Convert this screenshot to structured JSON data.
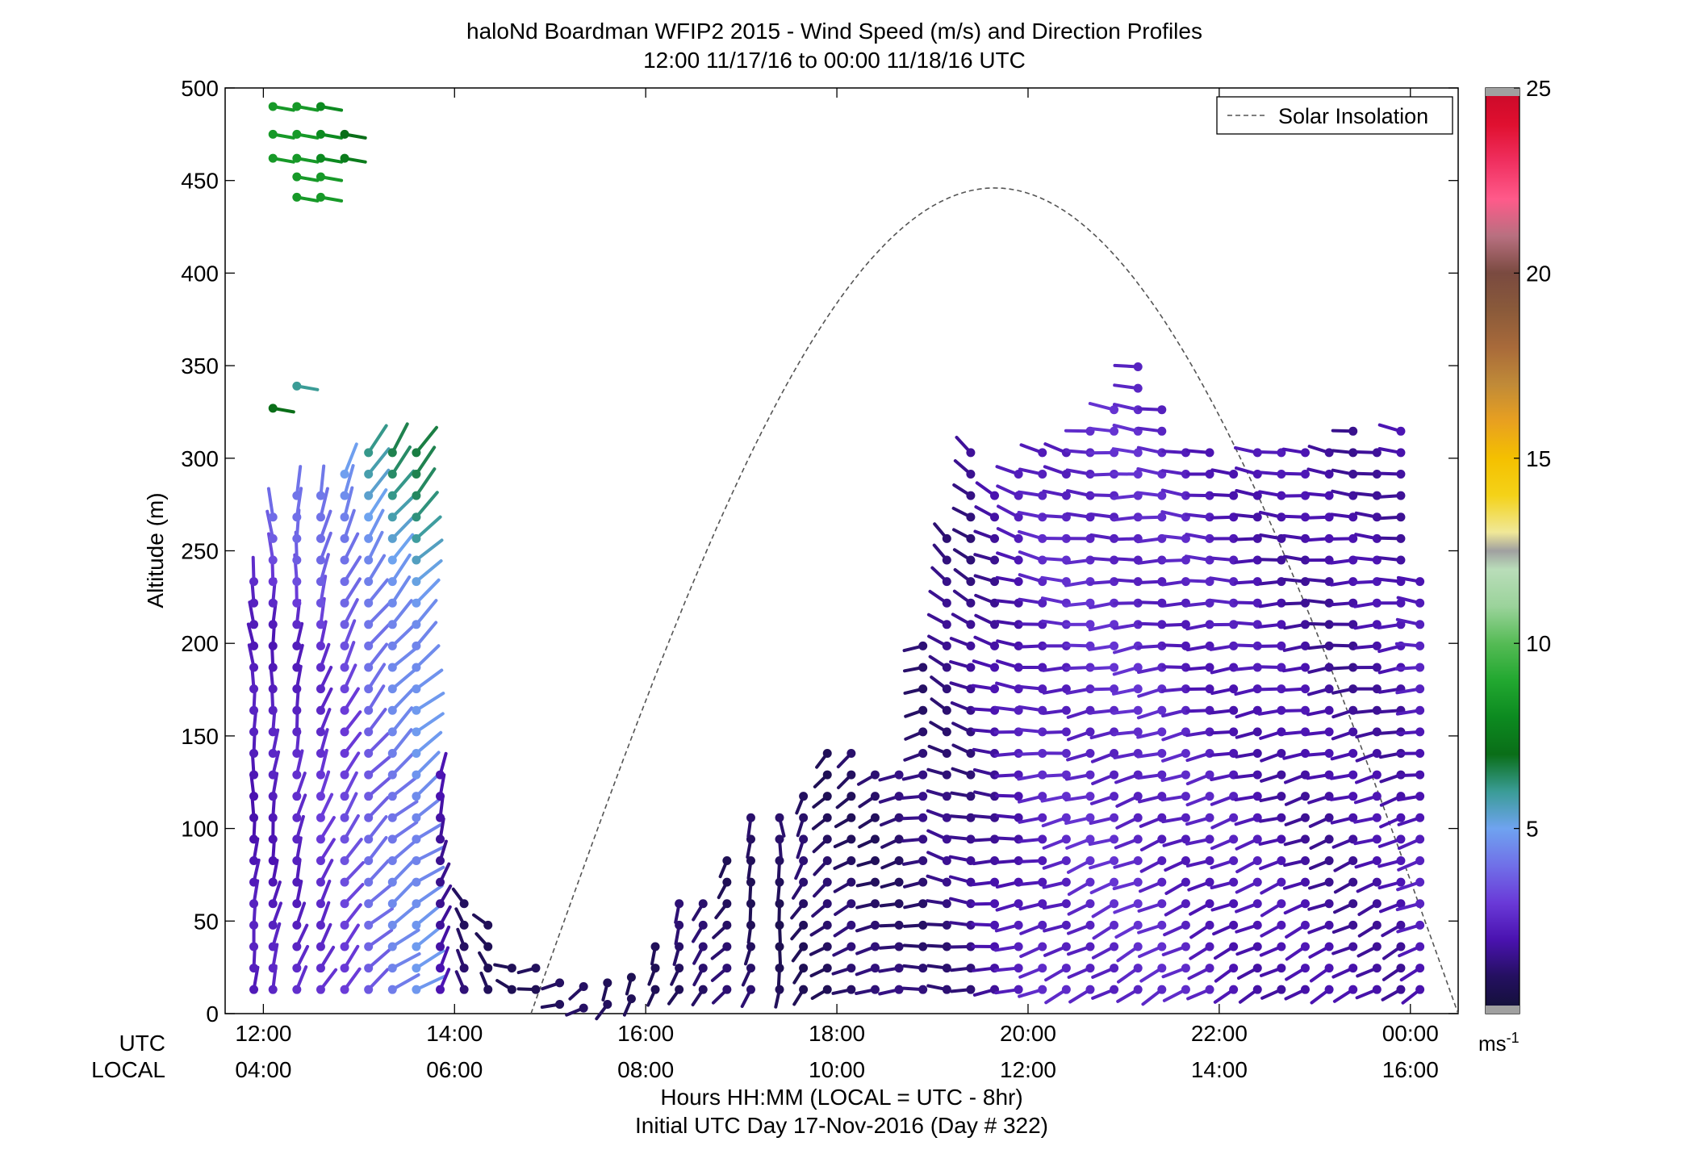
{
  "chart_data": {
    "type": "scatter",
    "title": "haloNd Boardman WFIP2 2015 - Wind Speed (m/s) and Direction Profiles",
    "subtitle": "12:00 11/17/16 to 00:00 11/18/16  UTC",
    "ylabel": "Altitude (m)",
    "ylim": [
      0,
      500
    ],
    "yticks": [
      "0",
      "50",
      "100",
      "150",
      "200",
      "250",
      "300",
      "350",
      "400",
      "450",
      "500"
    ],
    "xlim_hours": [
      11.6,
      24.5
    ],
    "xticks_utc": [
      "12:00",
      "14:00",
      "16:00",
      "18:00",
      "20:00",
      "22:00",
      "00:00"
    ],
    "xticks_local": [
      "04:00",
      "06:00",
      "08:00",
      "10:00",
      "12:00",
      "14:00",
      "16:00"
    ],
    "xrow_labels": {
      "utc": "UTC",
      "local": "LOCAL"
    },
    "xlabel": "Hours HH:MM  (LOCAL = UTC - 8hr)",
    "xlabel2": "Initial UTC Day 17-Nov-2016 (Day # 322)",
    "legend": {
      "label": "Solar Insolation",
      "placement": "top-right",
      "style": "dashed"
    },
    "colorbar": {
      "ticks": [
        "5",
        "10",
        "15",
        "20",
        "25"
      ],
      "range": [
        0,
        25
      ],
      "unit_label": "ms",
      "unit_exp": "-1",
      "stops": [
        [
          "#111133",
          0
        ],
        [
          "#241060",
          1
        ],
        [
          "#4a12b0",
          2
        ],
        [
          "#6a3ad8",
          3
        ],
        [
          "#7070e8",
          4
        ],
        [
          "#6fa3f0",
          5
        ],
        [
          "#3a9c96",
          6
        ],
        [
          "#0a6e18",
          7
        ],
        [
          "#0c8a20",
          8
        ],
        [
          "#22a830",
          9
        ],
        [
          "#55bb55",
          10
        ],
        [
          "#9bd39b",
          11
        ],
        [
          "#b9ddb9",
          12
        ],
        [
          "#a0a0a0",
          12.5
        ],
        [
          "#f0e898",
          13
        ],
        [
          "#f4d218",
          14
        ],
        [
          "#f4c000",
          15
        ],
        [
          "#e8a020",
          16
        ],
        [
          "#c08a38",
          17
        ],
        [
          "#a86a3a",
          18
        ],
        [
          "#8a5a3a",
          19
        ],
        [
          "#7a4a40",
          20
        ],
        [
          "#b87080",
          21
        ],
        [
          "#ff5a8a",
          22
        ],
        [
          "#f03060",
          23
        ],
        [
          "#e01030",
          24
        ],
        [
          "#c80828",
          25
        ]
      ]
    },
    "solar_peak_altitude": 446,
    "solar_peak_hour": 19.7,
    "solar_zero_hours": [
      14.8,
      24.5
    ],
    "wind_columns": [
      {
        "t": 11.9,
        "h0": 13,
        "h1": 240,
        "spd": 2.2,
        "dir": 170
      },
      {
        "t": 12.1,
        "h0": 13,
        "h1": 270,
        "spd": 2.3,
        "dir": 165
      },
      {
        "t": 12.35,
        "h0": 13,
        "h1": 280,
        "spd": 2.5,
        "dir": 160
      },
      {
        "t": 12.6,
        "h0": 13,
        "h1": 290,
        "spd": 2.8,
        "dir": 150
      },
      {
        "t": 12.85,
        "h0": 13,
        "h1": 300,
        "spd": 3.2,
        "dir": 140
      },
      {
        "t": 13.1,
        "h0": 13,
        "h1": 305,
        "spd": 3.8,
        "dir": 130
      },
      {
        "t": 13.35,
        "h0": 13,
        "h1": 305,
        "spd": 4.3,
        "dir": 125
      },
      {
        "t": 13.6,
        "h0": 13,
        "h1": 305,
        "spd": 4.6,
        "dir": 120
      },
      {
        "t": 13.85,
        "h0": 13,
        "h1": 132,
        "spd": 1.8,
        "dir": 150
      },
      {
        "t": 14.1,
        "h0": 13,
        "h1": 70,
        "spd": 1.2,
        "dir": 200
      },
      {
        "t": 14.35,
        "h0": 13,
        "h1": 50,
        "spd": 1.0,
        "dir": 210
      },
      {
        "t": 14.6,
        "h0": 13,
        "h1": 30,
        "spd": 1.0,
        "dir": 240
      },
      {
        "t": 14.85,
        "h0": 13,
        "h1": 25,
        "spd": 0.9,
        "dir": 260
      },
      {
        "t": 15.1,
        "h0": 5,
        "h1": 20,
        "spd": 0.8,
        "dir": 280
      },
      {
        "t": 15.35,
        "h0": 3,
        "h1": 18,
        "spd": 0.8,
        "dir": 300
      },
      {
        "t": 15.6,
        "h0": 5,
        "h1": 18,
        "spd": 0.8,
        "dir": 320
      },
      {
        "t": 15.85,
        "h0": 8,
        "h1": 25,
        "spd": 0.9,
        "dir": 330
      },
      {
        "t": 16.1,
        "h0": 13,
        "h1": 45,
        "spd": 1.0,
        "dir": 340
      },
      {
        "t": 16.35,
        "h0": 13,
        "h1": 70,
        "spd": 1.0,
        "dir": 330
      },
      {
        "t": 16.6,
        "h0": 13,
        "h1": 70,
        "spd": 1.0,
        "dir": 320
      },
      {
        "t": 16.85,
        "h0": 13,
        "h1": 85,
        "spd": 1.0,
        "dir": 310
      },
      {
        "t": 17.1,
        "h0": 13,
        "h1": 110,
        "spd": 1.0,
        "dir": 340
      },
      {
        "t": 17.4,
        "h0": 13,
        "h1": 110,
        "spd": 0.9,
        "dir": 350
      },
      {
        "t": 17.65,
        "h0": 13,
        "h1": 125,
        "spd": 1.0,
        "dir": 320
      },
      {
        "t": 17.9,
        "h0": 13,
        "h1": 145,
        "spd": 1.0,
        "dir": 300
      },
      {
        "t": 18.15,
        "h0": 13,
        "h1": 145,
        "spd": 1.1,
        "dir": 290
      },
      {
        "t": 18.4,
        "h0": 13,
        "h1": 140,
        "spd": 1.1,
        "dir": 280
      },
      {
        "t": 18.65,
        "h0": 13,
        "h1": 140,
        "spd": 1.2,
        "dir": 275
      },
      {
        "t": 18.9,
        "h0": 13,
        "h1": 200,
        "spd": 1.3,
        "dir": 270
      },
      {
        "t": 19.15,
        "h0": 13,
        "h1": 265,
        "spd": 1.4,
        "dir": 265
      },
      {
        "t": 19.4,
        "h0": 13,
        "h1": 305,
        "spd": 1.5,
        "dir": 270
      },
      {
        "t": 19.65,
        "h0": 13,
        "h1": 290,
        "spd": 1.8,
        "dir": 280
      },
      {
        "t": 19.9,
        "h0": 13,
        "h1": 300,
        "spd": 2.1,
        "dir": 285
      },
      {
        "t": 20.15,
        "h0": 13,
        "h1": 305,
        "spd": 2.4,
        "dir": 290
      },
      {
        "t": 20.4,
        "h0": 13,
        "h1": 305,
        "spd": 2.5,
        "dir": 295
      },
      {
        "t": 20.65,
        "h0": 13,
        "h1": 325,
        "spd": 2.6,
        "dir": 300
      },
      {
        "t": 20.9,
        "h0": 13,
        "h1": 330,
        "spd": 2.6,
        "dir": 300
      },
      {
        "t": 21.15,
        "h0": 13,
        "h1": 350,
        "spd": 2.6,
        "dir": 300
      },
      {
        "t": 21.4,
        "h0": 13,
        "h1": 335,
        "spd": 2.5,
        "dir": 300
      },
      {
        "t": 21.65,
        "h0": 13,
        "h1": 305,
        "spd": 2.4,
        "dir": 300
      },
      {
        "t": 21.9,
        "h0": 13,
        "h1": 305,
        "spd": 2.3,
        "dir": 300
      },
      {
        "t": 22.15,
        "h0": 13,
        "h1": 295,
        "spd": 2.2,
        "dir": 300
      },
      {
        "t": 22.4,
        "h0": 13,
        "h1": 305,
        "spd": 2.1,
        "dir": 300
      },
      {
        "t": 22.65,
        "h0": 13,
        "h1": 305,
        "spd": 2.0,
        "dir": 300
      },
      {
        "t": 22.9,
        "h0": 13,
        "h1": 305,
        "spd": 1.9,
        "dir": 300
      },
      {
        "t": 23.15,
        "h0": 13,
        "h1": 305,
        "spd": 1.8,
        "dir": 300
      },
      {
        "t": 23.4,
        "h0": 13,
        "h1": 325,
        "spd": 1.8,
        "dir": 300
      },
      {
        "t": 23.65,
        "h0": 13,
        "h1": 305,
        "spd": 1.9,
        "dir": 300
      },
      {
        "t": 23.9,
        "h0": 13,
        "h1": 325,
        "spd": 1.9,
        "dir": 300
      },
      {
        "t": 24.1,
        "h0": 13,
        "h1": 240,
        "spd": 2.2,
        "dir": 300
      }
    ],
    "high_barbs": [
      {
        "t": 12.1,
        "h": 490,
        "spd": 8.5
      },
      {
        "t": 12.35,
        "h": 490,
        "spd": 8.5
      },
      {
        "t": 12.6,
        "h": 490,
        "spd": 8.0
      },
      {
        "t": 12.1,
        "h": 475,
        "spd": 8.5
      },
      {
        "t": 12.35,
        "h": 475,
        "spd": 8.5
      },
      {
        "t": 12.6,
        "h": 475,
        "spd": 8.0
      },
      {
        "t": 12.85,
        "h": 475,
        "spd": 7.0
      },
      {
        "t": 12.1,
        "h": 462,
        "spd": 8.5
      },
      {
        "t": 12.35,
        "h": 462,
        "spd": 8.5
      },
      {
        "t": 12.6,
        "h": 462,
        "spd": 8.0
      },
      {
        "t": 12.85,
        "h": 462,
        "spd": 7.5
      },
      {
        "t": 12.35,
        "h": 452,
        "spd": 8.5
      },
      {
        "t": 12.6,
        "h": 452,
        "spd": 8.5
      },
      {
        "t": 12.35,
        "h": 441,
        "spd": 8.5
      },
      {
        "t": 12.6,
        "h": 441,
        "spd": 8.5
      },
      {
        "t": 12.1,
        "h": 327,
        "spd": 7.0
      },
      {
        "t": 12.35,
        "h": 339,
        "spd": 6.0
      }
    ]
  }
}
